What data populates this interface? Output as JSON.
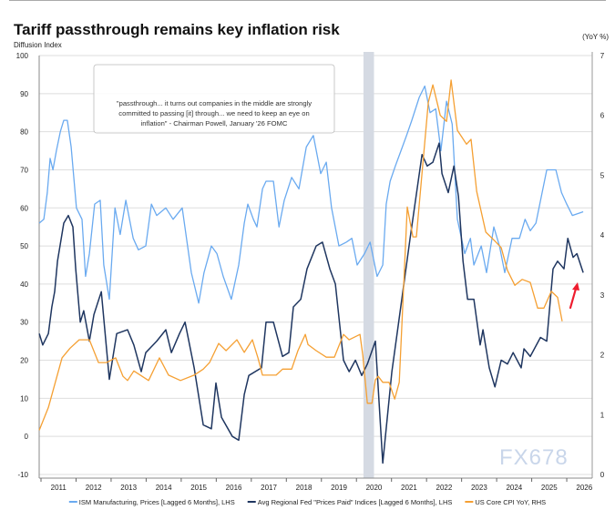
{
  "chart_data": {
    "type": "line",
    "title": "Tariff passthrough remains key inflation risk",
    "ylabel_left": "Diffusion Index",
    "ylabel_right": "(YoY %)",
    "ylim_left": [
      -10,
      100
    ],
    "ylim_right": [
      0,
      7
    ],
    "yticks_left": [
      -10,
      0,
      10,
      20,
      30,
      40,
      50,
      60,
      70,
      80,
      90,
      100
    ],
    "yticks_right": [
      0,
      1,
      2,
      3,
      4,
      5,
      6,
      7
    ],
    "xticks": [
      "2011",
      "2012",
      "2013",
      "2014",
      "2015",
      "2016",
      "2017",
      "2018",
      "2019",
      "2020",
      "2021",
      "2022",
      "2023",
      "2024",
      "2025",
      "2026"
    ],
    "xlim": [
      2011,
      2027
    ],
    "grid": "horizontal",
    "legend_position": "bottom",
    "recession_band": [
      2020.2,
      2020.5
    ],
    "annotation": "\"passthrough... it turns out companies in the middle are strongly committed to passing [it] through... we need to keep an eye on inflation\" - Chairman Powell, January '26 FOMC",
    "annotation_lines": [
      "\"passthrough... it turns out companies in the middle are strongly",
      "committed to passing [it] through... we need to keep an eye on",
      "inflation\" - Chairman Powell, January '26 FOMC"
    ],
    "series": [
      {
        "name": "ISM Manufacturing, Prices [Lagged 6 Months], LHS",
        "axis": "left",
        "color": "#6aaaf0",
        "points": [
          [
            2010.95,
            56
          ],
          [
            2011.08,
            57
          ],
          [
            2011.18,
            64
          ],
          [
            2011.26,
            73
          ],
          [
            2011.34,
            70
          ],
          [
            2011.44,
            75
          ],
          [
            2011.55,
            80
          ],
          [
            2011.65,
            83
          ],
          [
            2011.75,
            83
          ],
          [
            2011.86,
            76
          ],
          [
            2012.01,
            60
          ],
          [
            2012.17,
            57
          ],
          [
            2012.27,
            42
          ],
          [
            2012.38,
            48
          ],
          [
            2012.53,
            61
          ],
          [
            2012.69,
            62
          ],
          [
            2012.79,
            45
          ],
          [
            2012.95,
            36
          ],
          [
            2013.11,
            60
          ],
          [
            2013.26,
            53
          ],
          [
            2013.42,
            62
          ],
          [
            2013.63,
            52
          ],
          [
            2013.78,
            49
          ],
          [
            2013.99,
            50
          ],
          [
            2014.15,
            61
          ],
          [
            2014.3,
            58
          ],
          [
            2014.56,
            60
          ],
          [
            2014.77,
            57
          ],
          [
            2015.03,
            60
          ],
          [
            2015.29,
            43
          ],
          [
            2015.5,
            35
          ],
          [
            2015.65,
            43
          ],
          [
            2015.86,
            50
          ],
          [
            2016.02,
            48
          ],
          [
            2016.2,
            42
          ],
          [
            2016.43,
            36
          ],
          [
            2016.64,
            45
          ],
          [
            2016.8,
            56
          ],
          [
            2016.9,
            61
          ],
          [
            2017.06,
            57
          ],
          [
            2017.16,
            55
          ],
          [
            2017.32,
            65
          ],
          [
            2017.42,
            67
          ],
          [
            2017.63,
            67
          ],
          [
            2017.79,
            55
          ],
          [
            2017.94,
            62
          ],
          [
            2018.15,
            68
          ],
          [
            2018.36,
            65
          ],
          [
            2018.57,
            76
          ],
          [
            2018.77,
            79
          ],
          [
            2018.98,
            69
          ],
          [
            2019.14,
            72
          ],
          [
            2019.29,
            60
          ],
          [
            2019.5,
            50
          ],
          [
            2019.71,
            51
          ],
          [
            2019.87,
            52
          ],
          [
            2020.02,
            45
          ],
          [
            2020.23,
            48
          ],
          [
            2020.39,
            51
          ],
          [
            2020.59,
            42
          ],
          [
            2020.75,
            45
          ],
          [
            2020.85,
            61
          ],
          [
            2020.96,
            67
          ],
          [
            2021.11,
            71
          ],
          [
            2021.27,
            75
          ],
          [
            2021.43,
            79
          ],
          [
            2021.58,
            83
          ],
          [
            2021.79,
            89
          ],
          [
            2021.95,
            92
          ],
          [
            2022.1,
            85
          ],
          [
            2022.26,
            86
          ],
          [
            2022.41,
            75
          ],
          [
            2022.57,
            88
          ],
          [
            2022.73,
            82
          ],
          [
            2022.88,
            57
          ],
          [
            2023.09,
            48
          ],
          [
            2023.25,
            52
          ],
          [
            2023.35,
            45
          ],
          [
            2023.56,
            50
          ],
          [
            2023.71,
            43
          ],
          [
            2023.92,
            55
          ],
          [
            2024.08,
            50
          ],
          [
            2024.23,
            43
          ],
          [
            2024.44,
            52
          ],
          [
            2024.65,
            52
          ],
          [
            2024.81,
            57
          ],
          [
            2024.96,
            54
          ],
          [
            2025.12,
            56
          ],
          [
            2025.43,
            70
          ],
          [
            2025.69,
            70
          ],
          [
            2025.85,
            64
          ],
          [
            2026.0,
            61
          ],
          [
            2026.16,
            58
          ],
          [
            2026.47,
            59
          ]
        ]
      },
      {
        "name": "Avg Regional Fed \"Prices Paid\" Indices [Lagged 6 Months], LHS",
        "axis": "left",
        "color": "#1f3660",
        "points": [
          [
            2010.95,
            27
          ],
          [
            2011.05,
            24
          ],
          [
            2011.21,
            27
          ],
          [
            2011.31,
            34
          ],
          [
            2011.39,
            38
          ],
          [
            2011.47,
            46
          ],
          [
            2011.65,
            56
          ],
          [
            2011.78,
            58
          ],
          [
            2011.91,
            55
          ],
          [
            2011.99,
            44
          ],
          [
            2012.12,
            30
          ],
          [
            2012.22,
            33
          ],
          [
            2012.38,
            25
          ],
          [
            2012.51,
            32
          ],
          [
            2012.72,
            38
          ],
          [
            2012.95,
            15
          ],
          [
            2013.16,
            27
          ],
          [
            2013.47,
            28
          ],
          [
            2013.65,
            24
          ],
          [
            2013.86,
            17
          ],
          [
            2013.99,
            22
          ],
          [
            2014.3,
            25
          ],
          [
            2014.56,
            28
          ],
          [
            2014.72,
            22
          ],
          [
            2014.95,
            27
          ],
          [
            2015.11,
            30
          ],
          [
            2015.37,
            18
          ],
          [
            2015.63,
            3
          ],
          [
            2015.86,
            2
          ],
          [
            2015.99,
            14
          ],
          [
            2016.15,
            5
          ],
          [
            2016.46,
            0
          ],
          [
            2016.64,
            -1
          ],
          [
            2016.8,
            11
          ],
          [
            2016.93,
            16
          ],
          [
            2017.29,
            18
          ],
          [
            2017.42,
            30
          ],
          [
            2017.63,
            30
          ],
          [
            2017.89,
            21
          ],
          [
            2018.07,
            22
          ],
          [
            2018.2,
            34
          ],
          [
            2018.41,
            36
          ],
          [
            2018.59,
            44
          ],
          [
            2018.85,
            50
          ],
          [
            2019.03,
            51
          ],
          [
            2019.24,
            44
          ],
          [
            2019.4,
            40
          ],
          [
            2019.63,
            20
          ],
          [
            2019.79,
            17
          ],
          [
            2019.97,
            20
          ],
          [
            2020.15,
            16
          ],
          [
            2020.31,
            19
          ],
          [
            2020.54,
            25
          ],
          [
            2020.75,
            -7
          ],
          [
            2021.01,
            17
          ],
          [
            2021.19,
            29
          ],
          [
            2021.53,
            52
          ],
          [
            2021.87,
            74
          ],
          [
            2022.02,
            71
          ],
          [
            2022.18,
            72
          ],
          [
            2022.36,
            77
          ],
          [
            2022.44,
            69
          ],
          [
            2022.62,
            64
          ],
          [
            2022.78,
            71
          ],
          [
            2022.91,
            63
          ],
          [
            2023.04,
            46
          ],
          [
            2023.17,
            36
          ],
          [
            2023.35,
            36
          ],
          [
            2023.53,
            24
          ],
          [
            2023.61,
            28
          ],
          [
            2023.79,
            18
          ],
          [
            2023.95,
            13
          ],
          [
            2024.13,
            20
          ],
          [
            2024.31,
            19
          ],
          [
            2024.47,
            22
          ],
          [
            2024.7,
            18
          ],
          [
            2024.78,
            23
          ],
          [
            2024.96,
            21
          ],
          [
            2025.25,
            26
          ],
          [
            2025.43,
            25
          ],
          [
            2025.61,
            44
          ],
          [
            2025.74,
            46
          ],
          [
            2025.92,
            44
          ],
          [
            2026.03,
            52
          ],
          [
            2026.18,
            47
          ],
          [
            2026.29,
            48
          ],
          [
            2026.47,
            43
          ]
        ]
      },
      {
        "name": "US Core CPI YoY, RHS",
        "axis": "right",
        "color": "#f5a033",
        "points": [
          [
            2010.95,
            0.74
          ],
          [
            2011.21,
            1.12
          ],
          [
            2011.6,
            1.95
          ],
          [
            2011.83,
            2.11
          ],
          [
            2012.09,
            2.25
          ],
          [
            2012.38,
            2.25
          ],
          [
            2012.64,
            1.87
          ],
          [
            2012.87,
            1.87
          ],
          [
            2013.13,
            1.95
          ],
          [
            2013.34,
            1.64
          ],
          [
            2013.47,
            1.57
          ],
          [
            2013.65,
            1.73
          ],
          [
            2014.07,
            1.57
          ],
          [
            2014.38,
            1.95
          ],
          [
            2014.64,
            1.66
          ],
          [
            2014.98,
            1.57
          ],
          [
            2015.37,
            1.66
          ],
          [
            2015.63,
            1.76
          ],
          [
            2015.81,
            1.87
          ],
          [
            2016.07,
            2.19
          ],
          [
            2016.28,
            2.07
          ],
          [
            2016.59,
            2.25
          ],
          [
            2016.8,
            2.04
          ],
          [
            2017.03,
            2.25
          ],
          [
            2017.19,
            1.95
          ],
          [
            2017.32,
            1.66
          ],
          [
            2017.71,
            1.66
          ],
          [
            2017.89,
            1.76
          ],
          [
            2018.15,
            1.76
          ],
          [
            2018.33,
            2.07
          ],
          [
            2018.54,
            2.34
          ],
          [
            2018.62,
            2.17
          ],
          [
            2018.85,
            2.07
          ],
          [
            2019.14,
            1.96
          ],
          [
            2019.37,
            1.96
          ],
          [
            2019.63,
            2.34
          ],
          [
            2019.79,
            2.25
          ],
          [
            2020.1,
            2.34
          ],
          [
            2020.18,
            1.99
          ],
          [
            2020.31,
            1.19
          ],
          [
            2020.44,
            1.19
          ],
          [
            2020.54,
            1.58
          ],
          [
            2020.62,
            1.64
          ],
          [
            2020.75,
            1.54
          ],
          [
            2020.93,
            1.54
          ],
          [
            2021.09,
            1.26
          ],
          [
            2021.22,
            1.54
          ],
          [
            2021.45,
            4.47
          ],
          [
            2021.61,
            3.97
          ],
          [
            2021.71,
            3.97
          ],
          [
            2022.05,
            6.22
          ],
          [
            2022.18,
            6.51
          ],
          [
            2022.39,
            6.0
          ],
          [
            2022.57,
            5.9
          ],
          [
            2022.7,
            6.59
          ],
          [
            2022.88,
            5.75
          ],
          [
            2023.14,
            5.52
          ],
          [
            2023.27,
            5.6
          ],
          [
            2023.43,
            4.73
          ],
          [
            2023.69,
            4.05
          ],
          [
            2023.95,
            3.9
          ],
          [
            2024.13,
            3.79
          ],
          [
            2024.31,
            3.41
          ],
          [
            2024.52,
            3.16
          ],
          [
            2024.73,
            3.26
          ],
          [
            2024.96,
            3.21
          ],
          [
            2025.17,
            2.78
          ],
          [
            2025.35,
            2.78
          ],
          [
            2025.56,
            3.06
          ],
          [
            2025.74,
            2.96
          ],
          [
            2025.87,
            2.56
          ]
        ]
      }
    ],
    "arrow_color": "#ee1c2e"
  },
  "watermark": "FX678"
}
